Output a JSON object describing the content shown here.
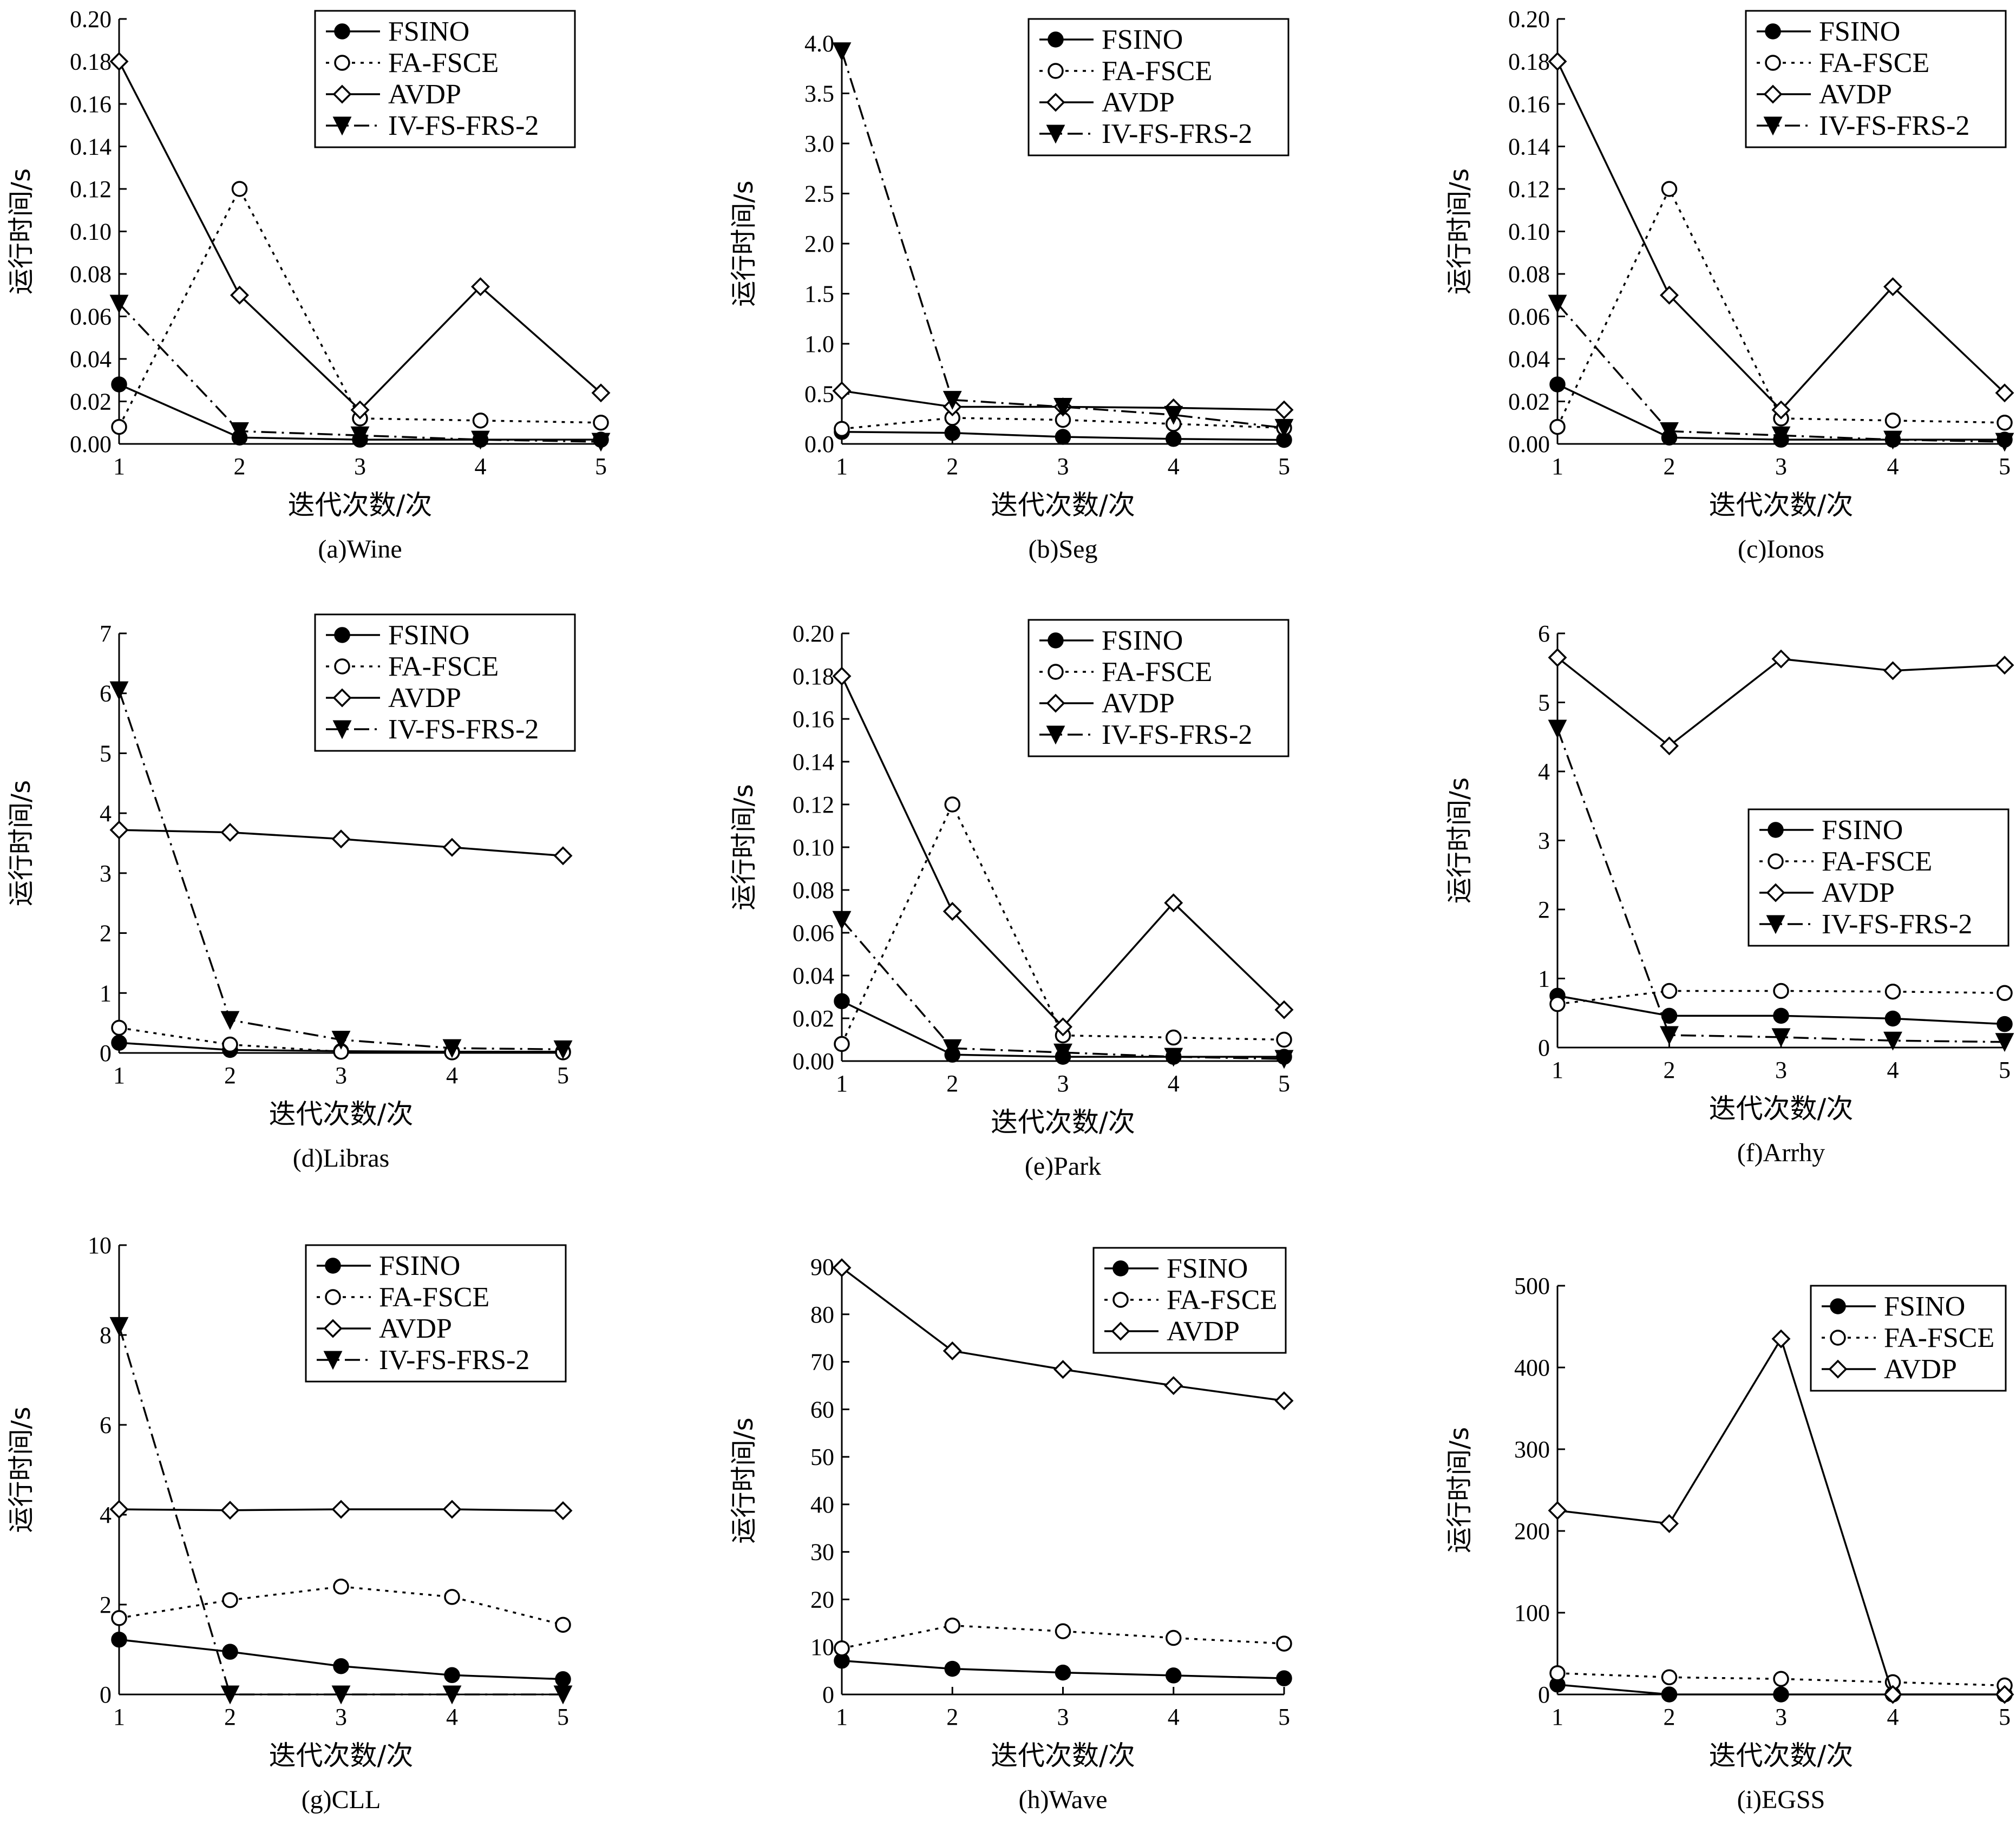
{
  "figure": {
    "series_names": [
      "FSINO",
      "FA-FSCE",
      "AVDP",
      "IV-FS-FRS-2"
    ],
    "colors": {
      "ink": "#000000",
      "background": "#ffffff"
    },
    "line_styles": {
      "FSINO": "solid, filled circle markers",
      "FA-FSCE": "dotted, open circle markers",
      "AVDP": "solid, open diamond markers",
      "IV-FS-FRS-2": "dash-dot, filled down-triangle markers"
    }
  },
  "chart_data": [
    {
      "id": "wine",
      "type": "line",
      "caption": "(a)Wine",
      "xlabel": "迭代次数/次",
      "ylabel": "运行时间/s",
      "x": [
        1,
        2,
        3,
        4,
        5
      ],
      "xticks": [
        "1",
        "2",
        "3",
        "4",
        "5"
      ],
      "ylim": [
        0,
        0.2
      ],
      "yticks": [
        "0.00",
        "0.02",
        "0.04",
        "0.06",
        "0.08",
        "0.10",
        "0.12",
        "0.14",
        "0.16",
        "0.18",
        "0.20"
      ],
      "legend": "top-right",
      "grid": false,
      "series": [
        {
          "name": "FSINO",
          "values": [
            0.028,
            0.003,
            0.002,
            0.002,
            0.002
          ]
        },
        {
          "name": "FA-FSCE",
          "values": [
            0.008,
            0.12,
            0.012,
            0.011,
            0.01
          ]
        },
        {
          "name": "AVDP",
          "values": [
            0.18,
            0.07,
            0.016,
            0.074,
            0.024
          ]
        },
        {
          "name": "IV-FS-FRS-2",
          "values": [
            0.066,
            0.006,
            0.004,
            0.002,
            0.001
          ]
        }
      ]
    },
    {
      "id": "seg",
      "type": "line",
      "caption": "(b)Seg",
      "xlabel": "迭代次数/次",
      "ylabel": "运行时间/s",
      "x": [
        1,
        2,
        3,
        4,
        5
      ],
      "xticks": [
        "1",
        "2",
        "3",
        "4",
        "5"
      ],
      "ylim": [
        0,
        4.0
      ],
      "yticks": [
        "0.0",
        "0.5",
        "1.0",
        "1.5",
        "2.0",
        "2.5",
        "3.0",
        "3.5",
        "4.0"
      ],
      "legend": "top-right",
      "grid": false,
      "series": [
        {
          "name": "FSINO",
          "values": [
            0.12,
            0.11,
            0.07,
            0.05,
            0.04
          ]
        },
        {
          "name": "FA-FSCE",
          "values": [
            0.15,
            0.26,
            0.24,
            0.2,
            0.16
          ]
        },
        {
          "name": "AVDP",
          "values": [
            0.53,
            0.37,
            0.37,
            0.36,
            0.34
          ]
        },
        {
          "name": "IV-FS-FRS-2",
          "values": [
            3.92,
            0.44,
            0.37,
            0.29,
            0.16
          ]
        }
      ]
    },
    {
      "id": "ionos",
      "type": "line",
      "caption": "(c)Ionos",
      "xlabel": "迭代次数/次",
      "ylabel": "运行时间/s",
      "x": [
        1,
        2,
        3,
        4,
        5
      ],
      "xticks": [
        "1",
        "2",
        "3",
        "4",
        "5"
      ],
      "ylim": [
        0,
        0.2
      ],
      "yticks": [
        "0.00",
        "0.02",
        "0.04",
        "0.06",
        "0.08",
        "0.10",
        "0.12",
        "0.14",
        "0.16",
        "0.18",
        "0.20"
      ],
      "legend": "top-right",
      "grid": false,
      "series": [
        {
          "name": "FSINO",
          "values": [
            0.028,
            0.003,
            0.002,
            0.002,
            0.002
          ]
        },
        {
          "name": "FA-FSCE",
          "values": [
            0.008,
            0.12,
            0.012,
            0.011,
            0.01
          ]
        },
        {
          "name": "AVDP",
          "values": [
            0.18,
            0.07,
            0.016,
            0.074,
            0.024
          ]
        },
        {
          "name": "IV-FS-FRS-2",
          "values": [
            0.066,
            0.006,
            0.004,
            0.002,
            0.001
          ]
        }
      ]
    },
    {
      "id": "libras",
      "type": "line",
      "caption": "(d)Libras",
      "xlabel": "迭代次数/次",
      "ylabel": "运行时间/s",
      "x": [
        1,
        2,
        3,
        4,
        5
      ],
      "xticks": [
        "1",
        "2",
        "3",
        "4",
        "5"
      ],
      "ylim": [
        0,
        7
      ],
      "yticks": [
        "0",
        "1",
        "2",
        "3",
        "4",
        "5",
        "6",
        "7"
      ],
      "legend": "top-right",
      "grid": false,
      "series": [
        {
          "name": "FSINO",
          "values": [
            0.17,
            0.05,
            0.03,
            0.02,
            0.02
          ]
        },
        {
          "name": "FA-FSCE",
          "values": [
            0.42,
            0.14,
            0.02,
            0.01,
            0.01
          ]
        },
        {
          "name": "AVDP",
          "values": [
            3.72,
            3.68,
            3.57,
            3.43,
            3.29
          ]
        },
        {
          "name": "IV-FS-FRS-2",
          "values": [
            6.05,
            0.55,
            0.22,
            0.08,
            0.06
          ]
        }
      ]
    },
    {
      "id": "park",
      "type": "line",
      "caption": "(e)Park",
      "xlabel": "迭代次数/次",
      "ylabel": "运行时间/s",
      "x": [
        1,
        2,
        3,
        4,
        5
      ],
      "xticks": [
        "1",
        "2",
        "3",
        "4",
        "5"
      ],
      "ylim": [
        0,
        0.2
      ],
      "yticks": [
        "0.00",
        "0.02",
        "0.04",
        "0.06",
        "0.08",
        "0.10",
        "0.12",
        "0.14",
        "0.16",
        "0.18",
        "0.20"
      ],
      "legend": "top-right",
      "grid": false,
      "series": [
        {
          "name": "FSINO",
          "values": [
            0.028,
            0.003,
            0.002,
            0.002,
            0.002
          ]
        },
        {
          "name": "FA-FSCE",
          "values": [
            0.008,
            0.12,
            0.012,
            0.011,
            0.01
          ]
        },
        {
          "name": "AVDP",
          "values": [
            0.18,
            0.07,
            0.016,
            0.074,
            0.024
          ]
        },
        {
          "name": "IV-FS-FRS-2",
          "values": [
            0.066,
            0.006,
            0.004,
            0.002,
            0.001
          ]
        }
      ]
    },
    {
      "id": "arrhy",
      "type": "line",
      "caption": "(f)Arrhy",
      "xlabel": "迭代次数/次",
      "ylabel": "运行时间/s",
      "x": [
        1,
        2,
        3,
        4,
        5
      ],
      "xticks": [
        "1",
        "2",
        "3",
        "4",
        "5"
      ],
      "ylim": [
        0,
        6
      ],
      "yticks": [
        "0",
        "1",
        "2",
        "3",
        "4",
        "5",
        "6"
      ],
      "legend": "right",
      "grid": false,
      "series": [
        {
          "name": "FSINO",
          "values": [
            0.75,
            0.46,
            0.46,
            0.42,
            0.34
          ]
        },
        {
          "name": "FA-FSCE",
          "values": [
            0.63,
            0.82,
            0.82,
            0.81,
            0.79
          ]
        },
        {
          "name": "AVDP",
          "values": [
            5.65,
            4.37,
            5.63,
            5.46,
            5.54
          ]
        },
        {
          "name": "IV-FS-FRS-2",
          "values": [
            4.62,
            0.18,
            0.15,
            0.1,
            0.08
          ]
        }
      ]
    },
    {
      "id": "cll",
      "type": "line",
      "caption": "(g)CLL",
      "xlabel": "迭代次数/次",
      "ylabel": "运行时间/s",
      "x": [
        1,
        2,
        3,
        4,
        5
      ],
      "xticks": [
        "1",
        "2",
        "3",
        "4",
        "5"
      ],
      "ylim": [
        0,
        10
      ],
      "yticks": [
        "0",
        "2",
        "4",
        "6",
        "8",
        "10"
      ],
      "legend": "top-right",
      "grid": false,
      "series": [
        {
          "name": "FSINO",
          "values": [
            1.22,
            0.95,
            0.63,
            0.43,
            0.34
          ]
        },
        {
          "name": "FA-FSCE",
          "values": [
            1.7,
            2.1,
            2.4,
            2.17,
            1.55
          ]
        },
        {
          "name": "AVDP",
          "values": [
            4.12,
            4.1,
            4.12,
            4.12,
            4.09
          ]
        },
        {
          "name": "IV-FS-FRS-2",
          "values": [
            8.2,
            0.0,
            0.0,
            0.0,
            0.0
          ]
        }
      ]
    },
    {
      "id": "wave",
      "type": "line",
      "caption": "(h)Wave",
      "xlabel": "迭代次数/次",
      "ylabel": "运行时间/s",
      "x": [
        1,
        2,
        3,
        4,
        5
      ],
      "xticks": [
        "1",
        "2",
        "3",
        "4",
        "5"
      ],
      "ylim": [
        0,
        90
      ],
      "yticks": [
        "0",
        "10",
        "20",
        "30",
        "40",
        "50",
        "60",
        "70",
        "80",
        "90"
      ],
      "legend": "top-right",
      "grid": false,
      "series": [
        {
          "name": "FSINO",
          "values": [
            7.1,
            5.4,
            4.6,
            4.0,
            3.4
          ]
        },
        {
          "name": "FA-FSCE",
          "values": [
            9.7,
            14.5,
            13.3,
            11.9,
            10.7
          ]
        },
        {
          "name": "AVDP",
          "values": [
            89.8,
            72.3,
            68.4,
            65.0,
            61.8
          ]
        }
      ]
    },
    {
      "id": "egss",
      "type": "line",
      "caption": "(i)EGSS",
      "xlabel": "迭代次数/次",
      "ylabel": "运行时间/s",
      "x": [
        1,
        2,
        3,
        4,
        5
      ],
      "xticks": [
        "1",
        "2",
        "3",
        "4",
        "5"
      ],
      "ylim": [
        0,
        500
      ],
      "yticks": [
        "0",
        "100",
        "200",
        "300",
        "400",
        "500"
      ],
      "legend": "top-right",
      "grid": false,
      "series": [
        {
          "name": "FSINO",
          "values": [
            12,
            0,
            0,
            0,
            0
          ]
        },
        {
          "name": "FA-FSCE",
          "values": [
            26,
            21,
            19,
            15,
            11
          ]
        },
        {
          "name": "AVDP",
          "values": [
            225,
            209,
            435,
            0,
            0
          ]
        }
      ]
    }
  ]
}
